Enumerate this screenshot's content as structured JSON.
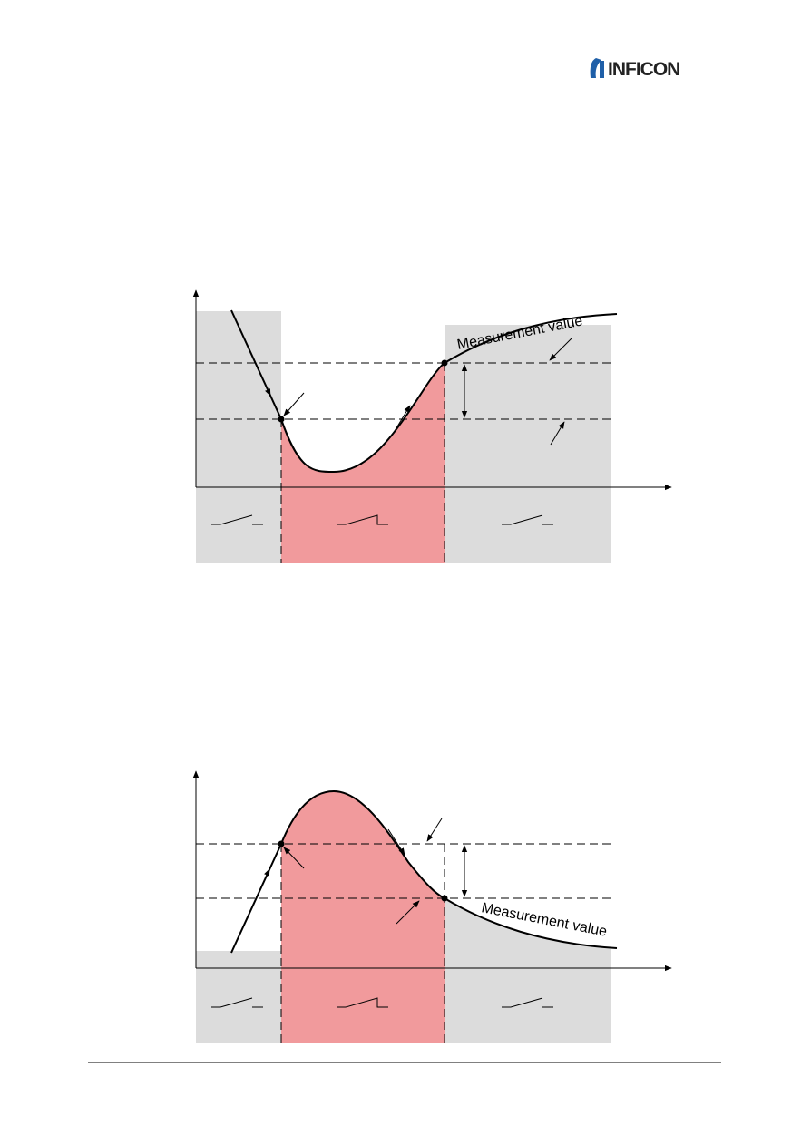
{
  "header": {
    "logo": "INFICON"
  },
  "figures": [
    {
      "curve_label": "Measurement value"
    },
    {
      "curve_label": "Measurement value"
    }
  ]
}
